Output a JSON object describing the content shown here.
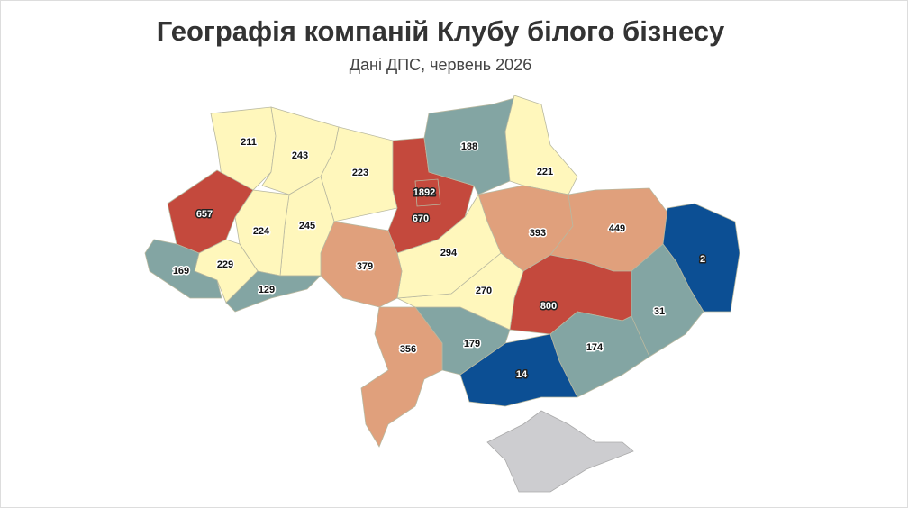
{
  "title": "Географія компаній Клубу білого бізнесу",
  "subtitle": "Дані ДПС, червень 2026",
  "regions": [
    {
      "value": 211,
      "color": "#fff7bc"
    },
    {
      "value": 243,
      "color": "#fff7bc"
    },
    {
      "value": 223,
      "color": "#fff7bc"
    },
    {
      "value": 670,
      "color": "#c4493d"
    },
    {
      "value": 188,
      "color": "#83a5a3"
    },
    {
      "value": 221,
      "color": "#fff7bc"
    },
    {
      "value": 393,
      "color": "#e0a07c"
    },
    {
      "value": 449,
      "color": "#e0a07c"
    },
    {
      "value": 2,
      "color": "#0c4f94"
    },
    {
      "value": 31,
      "color": "#83a5a3"
    },
    {
      "value": 800,
      "color": "#c4493d"
    },
    {
      "value": 174,
      "color": "#83a5a3"
    },
    {
      "value": 14,
      "color": "#0c4f94"
    },
    {
      "value": 179,
      "color": "#83a5a3"
    },
    {
      "value": 270,
      "color": "#fff7bc"
    },
    {
      "value": 294,
      "color": "#fff7bc"
    },
    {
      "value": 379,
      "color": "#e0a07c"
    },
    {
      "value": 356,
      "color": "#e0a07c"
    },
    {
      "value": 245,
      "color": "#fff7bc"
    },
    {
      "value": 224,
      "color": "#fff7bc"
    },
    {
      "value": 657,
      "color": "#c4493d"
    },
    {
      "value": 229,
      "color": "#fff7bc"
    },
    {
      "value": 169,
      "color": "#83a5a3"
    },
    {
      "value": 129,
      "color": "#83a5a3"
    },
    {
      "value": 1892,
      "color": "#c4493d"
    }
  ]
}
